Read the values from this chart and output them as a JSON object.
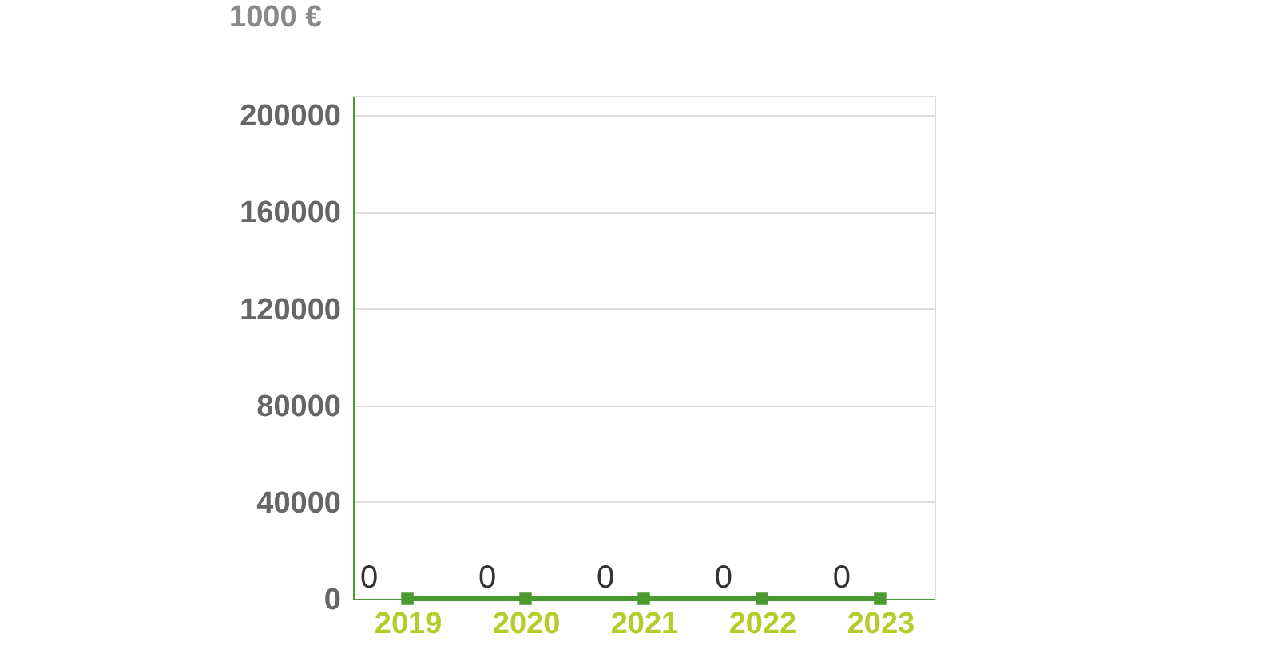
{
  "chart_data": {
    "type": "line",
    "ylabel": "1000 €",
    "categories": [
      "2019",
      "2020",
      "2021",
      "2022",
      "2023"
    ],
    "series": [
      {
        "color": "#4a9b2f",
        "values": [
          0,
          0,
          0,
          0,
          0
        ]
      }
    ],
    "ylim": [
      0,
      208000
    ],
    "yticks": [
      0,
      40000,
      80000,
      120000,
      160000,
      200000
    ],
    "grid": "y",
    "marker": "square",
    "data_labels": true
  }
}
